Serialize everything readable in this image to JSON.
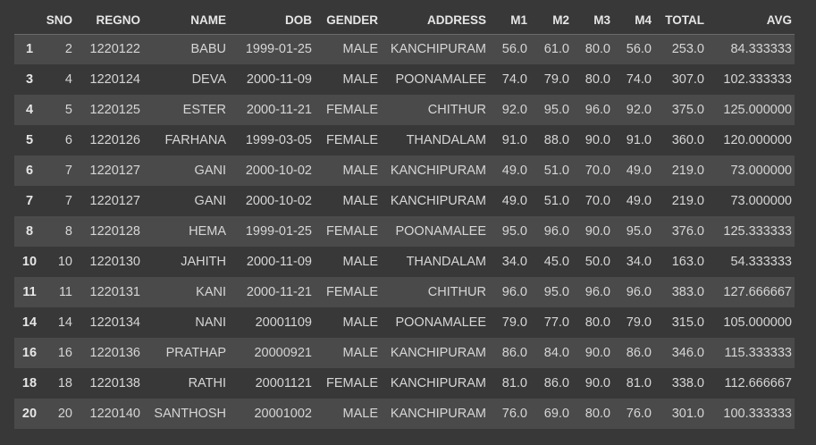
{
  "table": {
    "columns": [
      "SNO",
      "REGNO",
      "NAME",
      "DOB",
      "GENDER",
      "ADDRESS",
      "M1",
      "M2",
      "M3",
      "M4",
      "TOTAL",
      "AVG"
    ],
    "rows": [
      {
        "index": "1",
        "cells": [
          "2",
          "1220122",
          "BABU",
          "1999-01-25",
          "MALE",
          "KANCHIPURAM",
          "56.0",
          "61.0",
          "80.0",
          "56.0",
          "253.0",
          "84.333333"
        ]
      },
      {
        "index": "3",
        "cells": [
          "4",
          "1220124",
          "DEVA",
          "2000-11-09",
          "MALE",
          "POONAMALEE",
          "74.0",
          "79.0",
          "80.0",
          "74.0",
          "307.0",
          "102.333333"
        ]
      },
      {
        "index": "4",
        "cells": [
          "5",
          "1220125",
          "ESTER",
          "2000-11-21",
          "FEMALE",
          "CHITHUR",
          "92.0",
          "95.0",
          "96.0",
          "92.0",
          "375.0",
          "125.000000"
        ]
      },
      {
        "index": "5",
        "cells": [
          "6",
          "1220126",
          "FARHANA",
          "1999-03-05",
          "FEMALE",
          "THANDALAM",
          "91.0",
          "88.0",
          "90.0",
          "91.0",
          "360.0",
          "120.000000"
        ]
      },
      {
        "index": "6",
        "cells": [
          "7",
          "1220127",
          "GANI",
          "2000-10-02",
          "MALE",
          "KANCHIPURAM",
          "49.0",
          "51.0",
          "70.0",
          "49.0",
          "219.0",
          "73.000000"
        ]
      },
      {
        "index": "7",
        "cells": [
          "7",
          "1220127",
          "GANI",
          "2000-10-02",
          "MALE",
          "KANCHIPURAM",
          "49.0",
          "51.0",
          "70.0",
          "49.0",
          "219.0",
          "73.000000"
        ]
      },
      {
        "index": "8",
        "cells": [
          "8",
          "1220128",
          "HEMA",
          "1999-01-25",
          "FEMALE",
          "POONAMALEE",
          "95.0",
          "96.0",
          "90.0",
          "95.0",
          "376.0",
          "125.333333"
        ]
      },
      {
        "index": "10",
        "cells": [
          "10",
          "1220130",
          "JAHITH",
          "2000-11-09",
          "MALE",
          "THANDALAM",
          "34.0",
          "45.0",
          "50.0",
          "34.0",
          "163.0",
          "54.333333"
        ]
      },
      {
        "index": "11",
        "cells": [
          "11",
          "1220131",
          "KANI",
          "2000-11-21",
          "FEMALE",
          "CHITHUR",
          "96.0",
          "95.0",
          "96.0",
          "96.0",
          "383.0",
          "127.666667"
        ]
      },
      {
        "index": "14",
        "cells": [
          "14",
          "1220134",
          "NANI",
          "20001109",
          "MALE",
          "POONAMALEE",
          "79.0",
          "77.0",
          "80.0",
          "79.0",
          "315.0",
          "105.000000"
        ]
      },
      {
        "index": "16",
        "cells": [
          "16",
          "1220136",
          "PRATHAP",
          "20000921",
          "MALE",
          "KANCHIPURAM",
          "86.0",
          "84.0",
          "90.0",
          "86.0",
          "346.0",
          "115.333333"
        ]
      },
      {
        "index": "18",
        "cells": [
          "18",
          "1220138",
          "RATHI",
          "20001121",
          "FEMALE",
          "KANCHIPURAM",
          "81.0",
          "86.0",
          "90.0",
          "81.0",
          "338.0",
          "112.666667"
        ]
      },
      {
        "index": "20",
        "cells": [
          "20",
          "1220140",
          "SANTHOSH",
          "20001002",
          "MALE",
          "KANCHIPURAM",
          "76.0",
          "69.0",
          "80.0",
          "76.0",
          "301.0",
          "100.333333"
        ]
      }
    ]
  },
  "colors": {
    "background": "#383838",
    "row_stripe": "#4a4a4a",
    "text": "#d6d6d6",
    "header_text": "#e6e6e6"
  }
}
